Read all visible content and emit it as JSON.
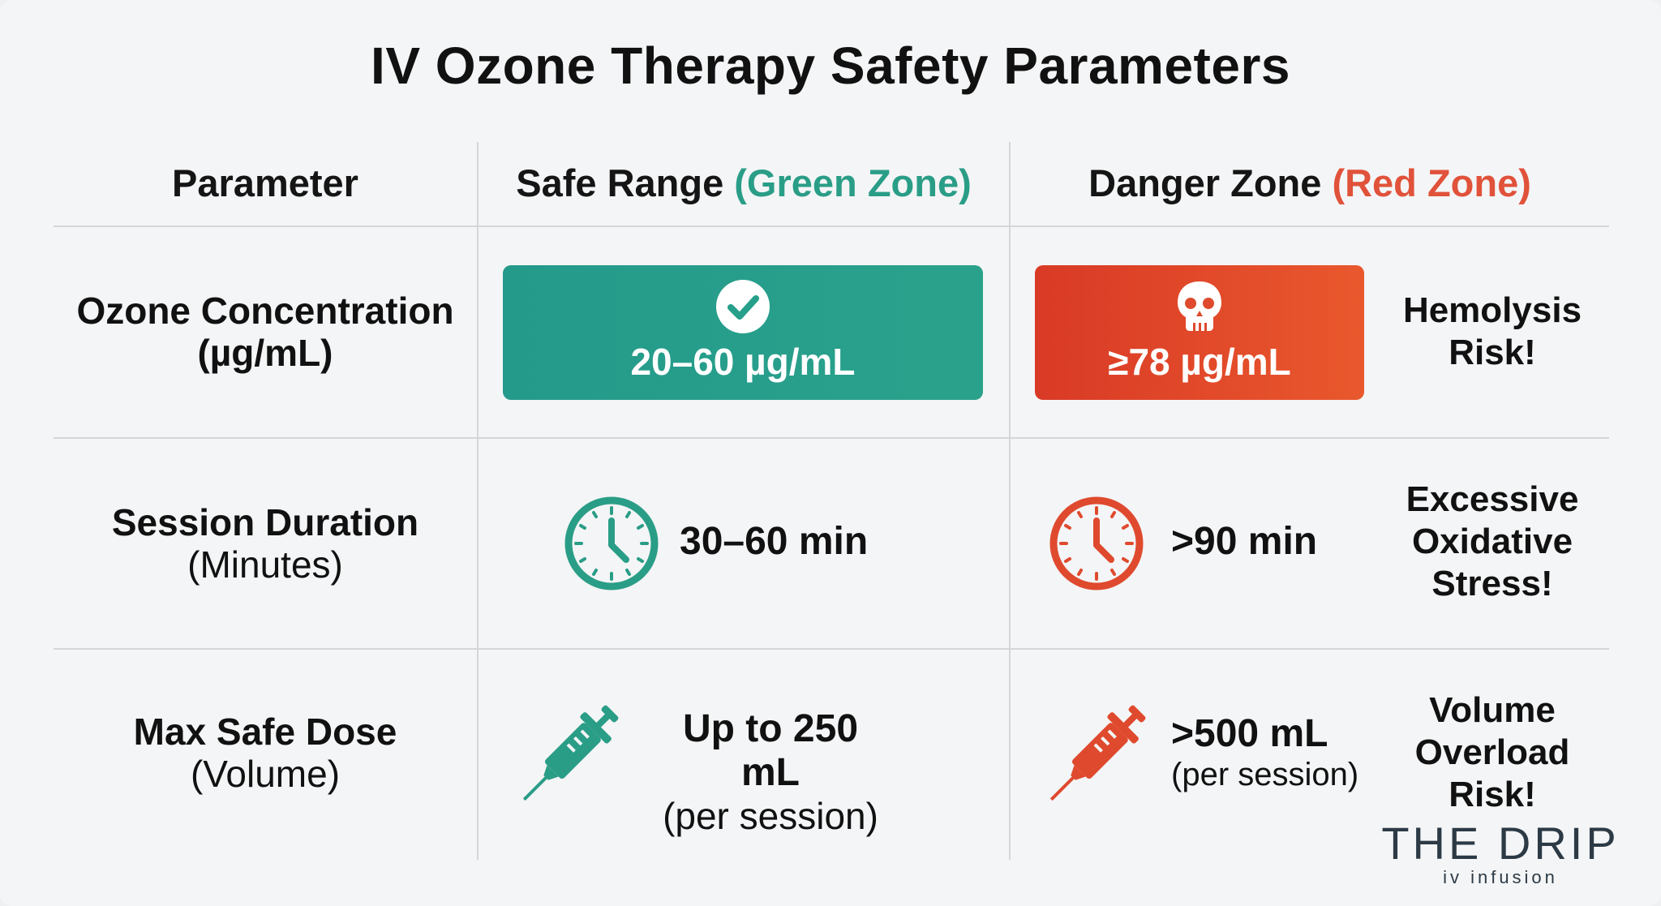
{
  "title": "IV Ozone Therapy Safety Parameters",
  "headers": {
    "parameter": "Parameter",
    "safe_main": "Safe Range ",
    "safe_zone": "(Green Zone)",
    "danger_main": "Danger Zone ",
    "danger_zone": "(Red Zone)"
  },
  "rows": [
    {
      "param_line1": "Ozone Concentration",
      "param_line2": "(µg/mL)",
      "safe_value": "20–60 µg/mL",
      "safe_icon": "check-circle-icon",
      "danger_value": "≥78 µg/mL",
      "danger_icon": "skull-icon",
      "risk_lines": [
        "Hemolysis",
        "Risk!"
      ]
    },
    {
      "param_line1": "Session Duration",
      "param_line2": "(Minutes)",
      "safe_value": "30–60 min",
      "safe_icon": "clock-icon",
      "danger_value": ">90 min",
      "danger_icon": "clock-icon",
      "risk_lines": [
        "Excessive",
        "Oxidative",
        "Stress!"
      ]
    },
    {
      "param_line1": "Max Safe Dose",
      "param_line2": "(Volume)",
      "safe_value": "Up to 250 mL",
      "safe_sub": "(per session)",
      "safe_icon": "syringe-icon",
      "danger_value": ">500 mL",
      "danger_sub": "(per session)",
      "danger_icon": "syringe-icon",
      "risk_lines": [
        "Volume",
        "Overload",
        "Risk!"
      ]
    }
  ],
  "logo": {
    "name": "THE DRIP",
    "tagline": "iv infusion"
  },
  "colors": {
    "safe": "#2a9d87",
    "danger": "#e0523a",
    "text": "#111111"
  }
}
